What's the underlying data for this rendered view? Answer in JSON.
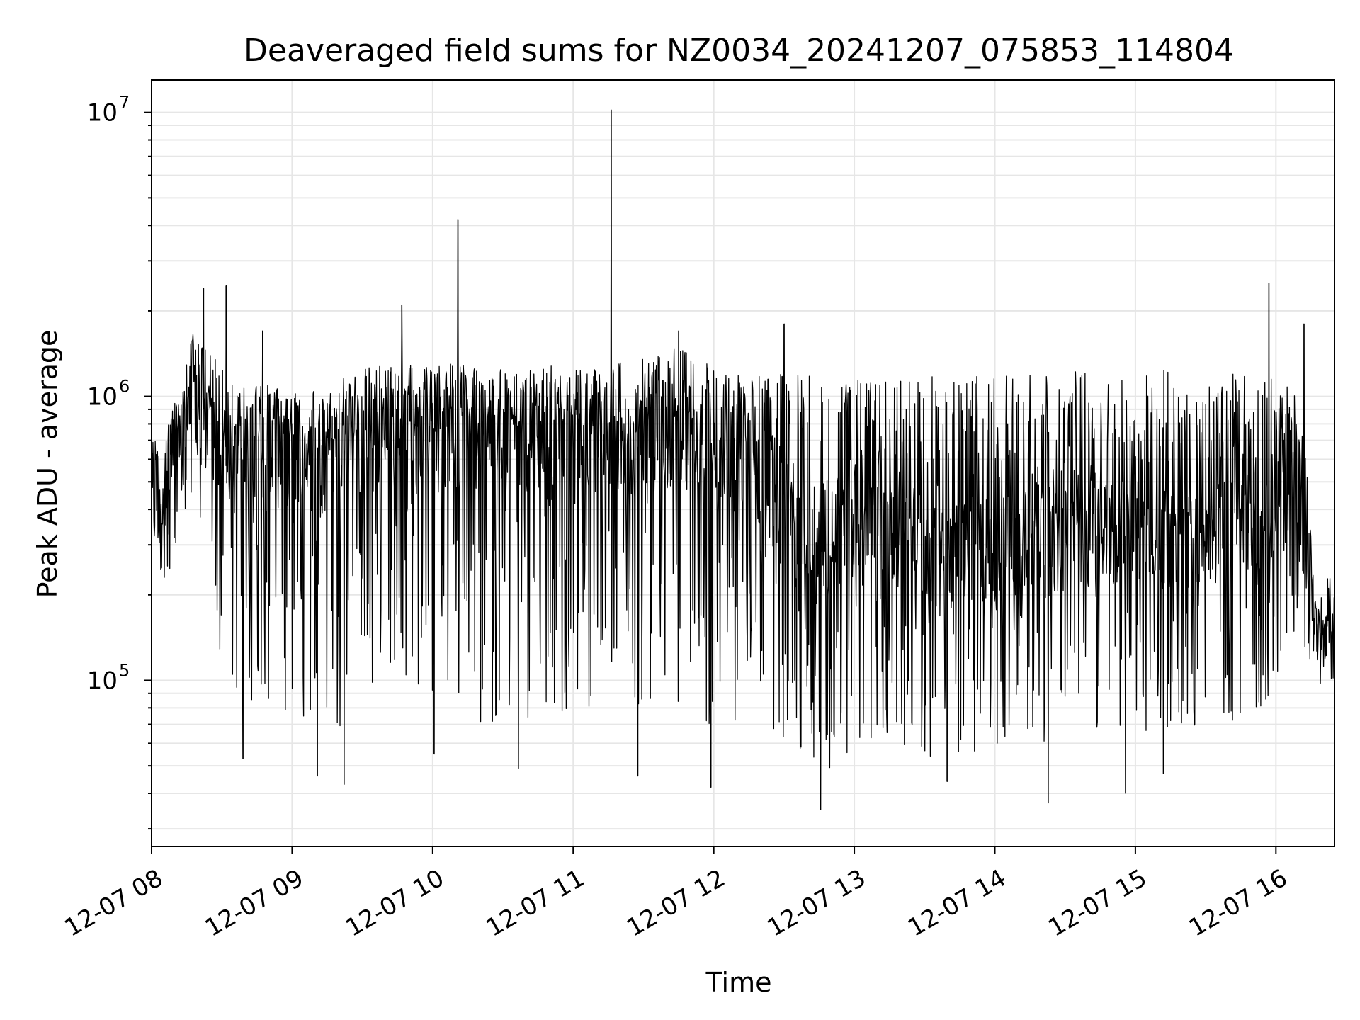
{
  "chart_data": {
    "type": "line",
    "title": "Deaveraged field sums for NZ0034_20241207_075853_114804",
    "xlabel": "Time",
    "ylabel": "Peak ADU - average",
    "y_scale": "log",
    "ylim": [
      26000,
      13000000
    ],
    "xlim": [
      "12-07 08:00",
      "12-07 16:25"
    ],
    "x_ticks": [
      "12-07 08",
      "12-07 09",
      "12-07 10",
      "12-07 11",
      "12-07 12",
      "12-07 13",
      "12-07 14",
      "12-07 15",
      "12-07 16"
    ],
    "x_tick_hours": [
      8,
      9,
      10,
      11,
      12,
      13,
      14,
      15,
      16
    ],
    "y_ticks": [
      {
        "base": "10",
        "exp": "5",
        "value": 100000
      },
      {
        "base": "10",
        "exp": "6",
        "value": 1000000
      },
      {
        "base": "10",
        "exp": "7",
        "value": 10000000
      }
    ],
    "grid": true,
    "line_color": "#000000",
    "grid_color": "#e6e6e6",
    "series": [
      {
        "x_hours": [
          8.0,
          8.1,
          8.2,
          8.3,
          8.35,
          8.45,
          8.55,
          8.65,
          8.8,
          9.0,
          9.2,
          9.4,
          9.6,
          9.8,
          10.0,
          10.18,
          10.3,
          10.5,
          10.7,
          10.9,
          11.1,
          11.27,
          11.4,
          11.6,
          11.75,
          11.9,
          12.1,
          12.3,
          12.5,
          12.7,
          12.85,
          13.0,
          13.2,
          13.4,
          13.6,
          13.8,
          14.0,
          14.2,
          14.4,
          14.6,
          14.8,
          15.0,
          15.2,
          15.4,
          15.6,
          15.8,
          15.95,
          16.0,
          16.15,
          16.22,
          16.3,
          16.42
        ],
        "y_center": [
          400000,
          550000,
          600000,
          1100000,
          1000000,
          650000,
          550000,
          600000,
          600000,
          650000,
          600000,
          650000,
          700000,
          700000,
          700000,
          750000,
          700000,
          700000,
          700000,
          650000,
          650000,
          700000,
          650000,
          700000,
          750000,
          700000,
          650000,
          550000,
          450000,
          350000,
          300000,
          350000,
          300000,
          320000,
          250000,
          280000,
          300000,
          300000,
          300000,
          320000,
          330000,
          320000,
          320000,
          330000,
          330000,
          350000,
          380000,
          450000,
          500000,
          300000,
          130000,
          160000
        ],
        "y_high": [
          700000,
          900000,
          1000000,
          1800000,
          1500000,
          1500000,
          1200000,
          1100000,
          1100000,
          1100000,
          1100000,
          1200000,
          1300000,
          1300000,
          1300000,
          1300000,
          1250000,
          1250000,
          1250000,
          1300000,
          1300000,
          1300000,
          1350000,
          1400000,
          1500000,
          1350000,
          1250000,
          1200000,
          1200000,
          1200000,
          1150000,
          1150000,
          1150000,
          1200000,
          1200000,
          1200000,
          1200000,
          1200000,
          1250000,
          1250000,
          1200000,
          1250000,
          1250000,
          1200000,
          1200000,
          1200000,
          1200000,
          1200000,
          1000000,
          600000,
          150000,
          200000
        ],
        "y_low": [
          250000,
          220000,
          300000,
          500000,
          350000,
          150000,
          90000,
          80000,
          70000,
          80000,
          60000,
          70000,
          90000,
          100000,
          80000,
          90000,
          70000,
          70000,
          70000,
          70000,
          80000,
          90000,
          80000,
          80000,
          80000,
          70000,
          70000,
          70000,
          60000,
          50000,
          45000,
          55000,
          55000,
          60000,
          50000,
          55000,
          55000,
          60000,
          60000,
          65000,
          70000,
          65000,
          60000,
          65000,
          70000,
          75000,
          80000,
          100000,
          150000,
          120000,
          100000,
          140000
        ]
      }
    ],
    "spikes": [
      {
        "hour": 8.37,
        "value": 2400000
      },
      {
        "hour": 8.53,
        "value": 2450000
      },
      {
        "hour": 8.79,
        "value": 1700000
      },
      {
        "hour": 9.78,
        "value": 2100000
      },
      {
        "hour": 10.18,
        "value": 4200000
      },
      {
        "hour": 11.27,
        "value": 10200000
      },
      {
        "hour": 11.75,
        "value": 1700000
      },
      {
        "hour": 12.5,
        "value": 1800000
      },
      {
        "hour": 15.95,
        "value": 2500000
      },
      {
        "hour": 16.2,
        "value": 1800000
      }
    ],
    "dips": [
      {
        "hour": 8.65,
        "value": 53000
      },
      {
        "hour": 9.18,
        "value": 46000
      },
      {
        "hour": 9.37,
        "value": 43000
      },
      {
        "hour": 10.01,
        "value": 55000
      },
      {
        "hour": 10.61,
        "value": 49000
      },
      {
        "hour": 11.46,
        "value": 46000
      },
      {
        "hour": 11.98,
        "value": 42000
      },
      {
        "hour": 12.76,
        "value": 35000
      },
      {
        "hour": 13.66,
        "value": 44000
      },
      {
        "hour": 14.38,
        "value": 37000
      },
      {
        "hour": 14.93,
        "value": 40000
      },
      {
        "hour": 15.2,
        "value": 47000
      }
    ]
  }
}
